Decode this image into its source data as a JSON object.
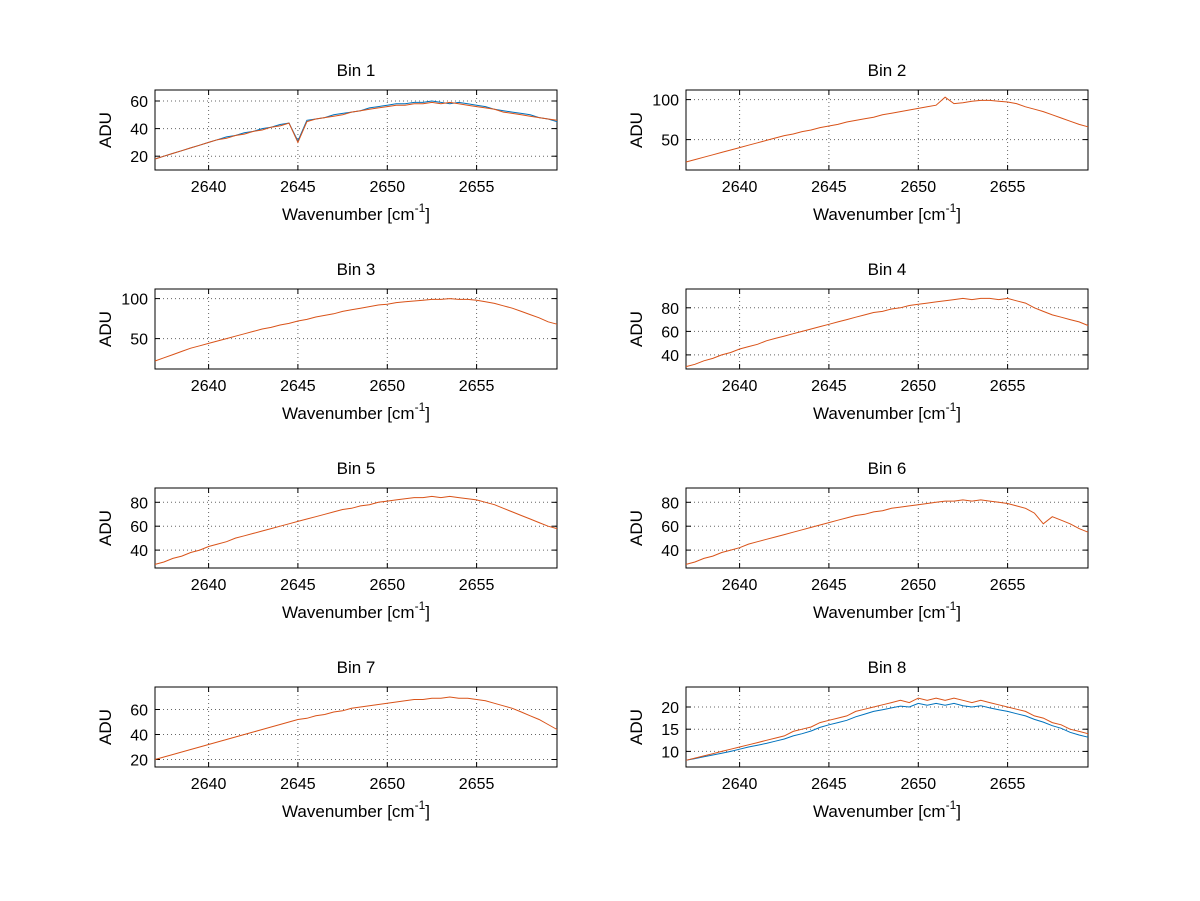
{
  "figure": {
    "background": "#ffffff",
    "ylabel": "ADU",
    "xlabel": "Wavenumber [cm⁻¹]",
    "xlabel_parts": {
      "prefix": "Wavenumber [cm",
      "sup": "-1",
      "suffix": "]"
    },
    "series_colors": {
      "blue": "#0072bd",
      "orange": "#d95319"
    }
  },
  "chart_data": [
    {
      "type": "line",
      "title": "Bin 1",
      "xlabel": "Wavenumber [cm⁻¹]",
      "ylabel": "ADU",
      "grid": true,
      "xlim": [
        2637,
        2659.5
      ],
      "ylim": [
        10,
        68
      ],
      "xticks": [
        2640,
        2645,
        2650,
        2655
      ],
      "yticks": [
        20,
        40,
        60
      ],
      "x_start": 2637,
      "x_step": 0.5,
      "series": [
        {
          "name": "trace-blue",
          "color": "#0072bd",
          "values": [
            18,
            20,
            22,
            24,
            26,
            28,
            30,
            32,
            34,
            35,
            37,
            38,
            40,
            41,
            43,
            44,
            31,
            46,
            47,
            48,
            50,
            51,
            52,
            53,
            55,
            56,
            57,
            58,
            58,
            59,
            59,
            60,
            59,
            58,
            59,
            58,
            57,
            56,
            54,
            53,
            52,
            51,
            50,
            48,
            47,
            45
          ]
        },
        {
          "name": "trace-orange",
          "color": "#d95319",
          "values": [
            18,
            20,
            22,
            24,
            26,
            28,
            30,
            32,
            33,
            35,
            36,
            38,
            39,
            41,
            42,
            44,
            30,
            45,
            47,
            48,
            49,
            50,
            52,
            53,
            54,
            55,
            56,
            57,
            57,
            58,
            58,
            59,
            58,
            59,
            58,
            57,
            56,
            55,
            54,
            52,
            51,
            50,
            49,
            48,
            47,
            46
          ]
        }
      ]
    },
    {
      "type": "line",
      "title": "Bin 2",
      "xlabel": "Wavenumber [cm⁻¹]",
      "ylabel": "ADU",
      "grid": true,
      "xlim": [
        2637,
        2659.5
      ],
      "ylim": [
        12,
        112
      ],
      "xticks": [
        2640,
        2645,
        2650,
        2655
      ],
      "yticks": [
        50,
        100
      ],
      "x_start": 2637,
      "x_step": 0.5,
      "series": [
        {
          "name": "trace-orange",
          "color": "#d95319",
          "values": [
            22,
            25,
            28,
            31,
            34,
            37,
            40,
            43,
            46,
            49,
            52,
            55,
            57,
            60,
            62,
            65,
            67,
            69,
            72,
            74,
            76,
            78,
            81,
            83,
            85,
            87,
            89,
            91,
            93,
            103,
            95,
            96,
            98,
            99,
            99,
            98,
            97,
            95,
            91,
            88,
            85,
            81,
            77,
            73,
            69,
            66
          ]
        }
      ]
    },
    {
      "type": "line",
      "title": "Bin 3",
      "xlabel": "Wavenumber [cm⁻¹]",
      "ylabel": "ADU",
      "grid": true,
      "xlim": [
        2637,
        2659.5
      ],
      "ylim": [
        12,
        112
      ],
      "xticks": [
        2640,
        2645,
        2650,
        2655
      ],
      "yticks": [
        50,
        100
      ],
      "x_start": 2637,
      "x_step": 0.5,
      "series": [
        {
          "name": "trace-orange",
          "color": "#d95319",
          "values": [
            22,
            26,
            30,
            34,
            38,
            41,
            44,
            47,
            50,
            53,
            56,
            59,
            62,
            64,
            67,
            69,
            72,
            74,
            77,
            79,
            81,
            84,
            86,
            88,
            90,
            92,
            93,
            95,
            96,
            97,
            98,
            99,
            99,
            100,
            99,
            99,
            98,
            96,
            94,
            91,
            88,
            84,
            80,
            76,
            71,
            68
          ]
        }
      ]
    },
    {
      "type": "line",
      "title": "Bin 4",
      "xlabel": "Wavenumber [cm⁻¹]",
      "ylabel": "ADU",
      "grid": true,
      "xlim": [
        2637,
        2659.5
      ],
      "ylim": [
        28,
        96
      ],
      "xticks": [
        2640,
        2645,
        2650,
        2655
      ],
      "yticks": [
        40,
        60,
        80
      ],
      "x_start": 2637,
      "x_step": 0.5,
      "series": [
        {
          "name": "trace-orange",
          "color": "#d95319",
          "values": [
            30,
            32,
            35,
            37,
            40,
            42,
            45,
            47,
            49,
            52,
            54,
            56,
            58,
            60,
            62,
            64,
            66,
            68,
            70,
            72,
            74,
            76,
            77,
            79,
            80,
            82,
            83,
            84,
            85,
            86,
            87,
            88,
            87,
            88,
            88,
            87,
            88,
            86,
            84,
            80,
            77,
            74,
            72,
            70,
            68,
            65
          ]
        }
      ]
    },
    {
      "type": "line",
      "title": "Bin 5",
      "xlabel": "Wavenumber [cm⁻¹]",
      "ylabel": "ADU",
      "grid": true,
      "xlim": [
        2637,
        2659.5
      ],
      "ylim": [
        25,
        92
      ],
      "xticks": [
        2640,
        2645,
        2650,
        2655
      ],
      "yticks": [
        40,
        60,
        80
      ],
      "x_start": 2637,
      "x_step": 0.5,
      "series": [
        {
          "name": "trace-orange",
          "color": "#d95319",
          "values": [
            28,
            30,
            33,
            35,
            38,
            40,
            43,
            45,
            47,
            50,
            52,
            54,
            56,
            58,
            60,
            62,
            64,
            66,
            68,
            70,
            72,
            74,
            75,
            77,
            78,
            80,
            81,
            82,
            83,
            84,
            84,
            85,
            84,
            85,
            84,
            83,
            82,
            80,
            78,
            75,
            72,
            69,
            66,
            63,
            60,
            58
          ]
        }
      ]
    },
    {
      "type": "line",
      "title": "Bin 6",
      "xlabel": "Wavenumber [cm⁻¹]",
      "ylabel": "ADU",
      "grid": true,
      "xlim": [
        2637,
        2659.5
      ],
      "ylim": [
        25,
        92
      ],
      "xticks": [
        2640,
        2645,
        2650,
        2655
      ],
      "yticks": [
        40,
        60,
        80
      ],
      "x_start": 2637,
      "x_step": 0.5,
      "series": [
        {
          "name": "trace-orange",
          "color": "#d95319",
          "values": [
            28,
            30,
            33,
            35,
            38,
            40,
            42,
            45,
            47,
            49,
            51,
            53,
            55,
            57,
            59,
            61,
            63,
            65,
            67,
            69,
            70,
            72,
            73,
            75,
            76,
            77,
            78,
            79,
            80,
            81,
            81,
            82,
            81,
            82,
            81,
            80,
            79,
            77,
            75,
            71,
            62,
            68,
            65,
            62,
            58,
            55
          ]
        }
      ]
    },
    {
      "type": "line",
      "title": "Bin 7",
      "xlabel": "Wavenumber [cm⁻¹]",
      "ylabel": "ADU",
      "grid": true,
      "xlim": [
        2637,
        2659.5
      ],
      "ylim": [
        14,
        78
      ],
      "xticks": [
        2640,
        2645,
        2650,
        2655
      ],
      "yticks": [
        20,
        40,
        60
      ],
      "x_start": 2637,
      "x_step": 0.5,
      "series": [
        {
          "name": "trace-orange",
          "color": "#d95319",
          "values": [
            20,
            22,
            24,
            26,
            28,
            30,
            32,
            34,
            36,
            38,
            40,
            42,
            44,
            46,
            48,
            50,
            52,
            53,
            55,
            56,
            58,
            59,
            61,
            62,
            63,
            64,
            65,
            66,
            67,
            68,
            68,
            69,
            69,
            70,
            69,
            69,
            68,
            67,
            65,
            63,
            61,
            58,
            55,
            52,
            48,
            44
          ]
        }
      ]
    },
    {
      "type": "line",
      "title": "Bin 8",
      "xlabel": "Wavenumber [cm⁻¹]",
      "ylabel": "ADU",
      "grid": true,
      "xlim": [
        2637,
        2659.5
      ],
      "ylim": [
        6.5,
        24.5
      ],
      "xticks": [
        2640,
        2645,
        2650,
        2655
      ],
      "yticks": [
        10,
        15,
        20
      ],
      "x_start": 2637,
      "x_step": 0.5,
      "series": [
        {
          "name": "trace-blue",
          "color": "#0072bd",
          "values": [
            8,
            8.4,
            8.8,
            9.2,
            9.6,
            10,
            10.5,
            11,
            11.4,
            11.8,
            12.3,
            12.8,
            13.5,
            14,
            14.6,
            15.4,
            16,
            16.5,
            17,
            17.8,
            18.4,
            19,
            19.4,
            19.8,
            20.2,
            20,
            20.8,
            20.4,
            20.8,
            20.4,
            20.8,
            20.3,
            20,
            20.3,
            19.8,
            19.4,
            19,
            18.5,
            18,
            17.2,
            16.6,
            15.8,
            15.2,
            14.3,
            13.7,
            13.2
          ]
        },
        {
          "name": "trace-orange",
          "color": "#d95319",
          "values": [
            8,
            8.5,
            9,
            9.5,
            10,
            10.5,
            11,
            11.5,
            12,
            12.5,
            13,
            13.5,
            14.5,
            15,
            15.5,
            16.5,
            17,
            17.5,
            18,
            19,
            19.5,
            20,
            20.5,
            21,
            21.5,
            21,
            22,
            21.5,
            22,
            21.5,
            22,
            21.5,
            21,
            21.5,
            21,
            20.5,
            20,
            19.5,
            19,
            18,
            17.5,
            16.5,
            16,
            15,
            14.5,
            14
          ]
        }
      ]
    }
  ]
}
